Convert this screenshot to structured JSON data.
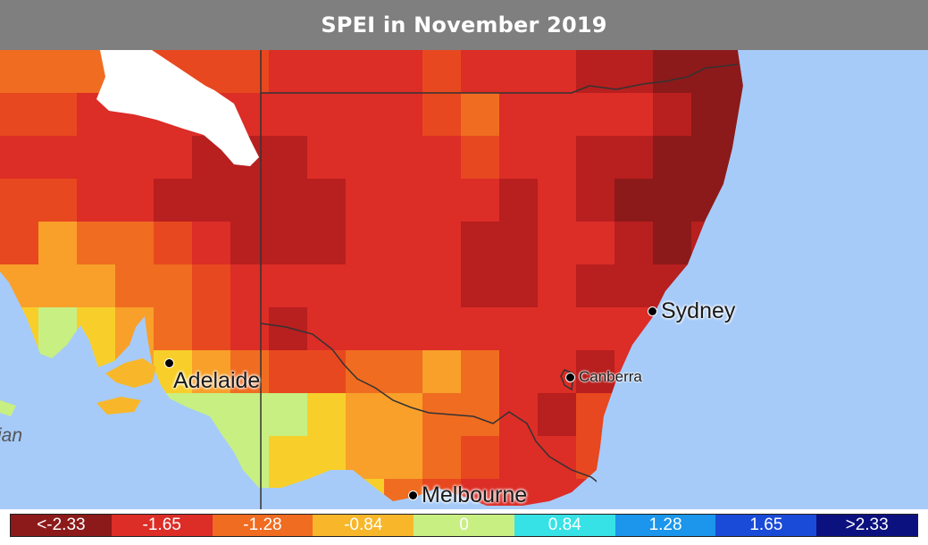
{
  "title": "SPEI in November 2019",
  "colors": {
    "title_bg": "#7f7f7f",
    "ocean": "#a6cbf8",
    "land_excluded": "#ffffff",
    "border_lines": "#333333"
  },
  "cities": [
    {
      "name": "Sydney",
      "size": "big"
    },
    {
      "name": "Canberra",
      "size": "small"
    },
    {
      "name": "Adelaide",
      "size": "big"
    },
    {
      "name": "Melbourne",
      "size": "big"
    }
  ],
  "partial_ocean_label": "ian",
  "legend": [
    {
      "label": "<-2.33",
      "color": "#8c1a1a"
    },
    {
      "label": "-1.65",
      "color": "#dc2d27"
    },
    {
      "label": "-1.28",
      "color": "#f06c21"
    },
    {
      "label": "-0.84",
      "color": "#f8b72a"
    },
    {
      "label": "0",
      "color": "#c8ef82"
    },
    {
      "label": "0.84",
      "color": "#36e2e6"
    },
    {
      "label": "1.28",
      "color": "#1b96ec"
    },
    {
      "label": "1.65",
      "color": "#1a4bd8"
    },
    {
      "label": ">2.33",
      "color": "#0c1180"
    }
  ]
}
